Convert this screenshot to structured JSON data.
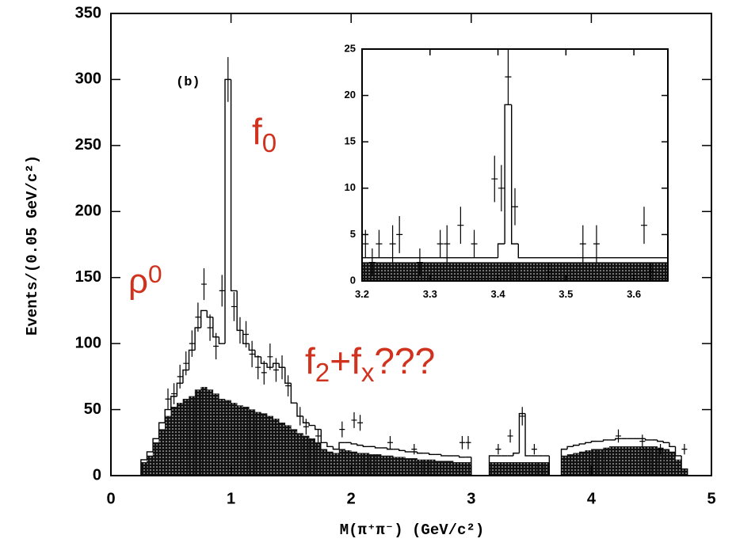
{
  "chart_data": [
    {
      "type": "histogram",
      "xlabel": "M(π⁺π⁻)  (GeV/c²)",
      "ylabel": "Events/(0.05 GeV/c²)",
      "xlim": [
        0,
        5
      ],
      "ylim": [
        0,
        350
      ],
      "xticks": [
        0,
        1,
        2,
        3,
        4,
        5
      ],
      "yticks": [
        0,
        50,
        100,
        150,
        200,
        250,
        300,
        350
      ],
      "bins": [
        0.2,
        0.25,
        0.3,
        0.35,
        0.4,
        0.45,
        0.5,
        0.55,
        0.6,
        0.65,
        0.7,
        0.75,
        0.8,
        0.85,
        0.9,
        0.95,
        1.0,
        1.05,
        1.1,
        1.15,
        1.2,
        1.25,
        1.3,
        1.35,
        1.4,
        1.45,
        1.5,
        1.55,
        1.6,
        1.65,
        1.7,
        1.75,
        1.8,
        1.85,
        1.9,
        1.95,
        2.0,
        2.05,
        2.1,
        2.15,
        2.2,
        2.25,
        2.3,
        2.35,
        2.4,
        2.45,
        2.5,
        2.55,
        2.6,
        2.65,
        2.7,
        2.75,
        2.8,
        2.85,
        2.9,
        2.95,
        3.0,
        3.05,
        3.1,
        3.15,
        3.2,
        3.25,
        3.3,
        3.35,
        3.4,
        3.45,
        3.5,
        3.55,
        3.6,
        3.65,
        3.7,
        3.75,
        3.8,
        3.85,
        3.9,
        3.95,
        4.0,
        4.05,
        4.1,
        4.15,
        4.2,
        4.25,
        4.3,
        4.35,
        4.4,
        4.45,
        4.5,
        4.55,
        4.6,
        4.65,
        4.7,
        4.75,
        4.8
      ],
      "series": [
        {
          "style": "hatched",
          "color": "#111111",
          "values": [
            0,
            10,
            15,
            25,
            35,
            45,
            52,
            55,
            58,
            60,
            65,
            67,
            65,
            62,
            58,
            57,
            55,
            53,
            52,
            50,
            48,
            47,
            45,
            43,
            40,
            38,
            35,
            32,
            30,
            28,
            25,
            20,
            18,
            17,
            20,
            19,
            18,
            17,
            17,
            16,
            16,
            15,
            15,
            14,
            14,
            13,
            13,
            12,
            12,
            12,
            11,
            11,
            11,
            10,
            10,
            10,
            0,
            0,
            0,
            10,
            10,
            10,
            10,
            10,
            10,
            10,
            10,
            10,
            10,
            0,
            0,
            15,
            16,
            17,
            18,
            19,
            20,
            20,
            21,
            22,
            22,
            22,
            22,
            22,
            22,
            22,
            22,
            21,
            20,
            18,
            12,
            5
          ]
        },
        {
          "style": "step",
          "color": "#000000",
          "values": [
            0,
            12,
            18,
            28,
            40,
            50,
            60,
            70,
            80,
            95,
            112,
            125,
            120,
            105,
            100,
            300,
            140,
            110,
            100,
            95,
            90,
            85,
            82,
            85,
            82,
            70,
            55,
            45,
            40,
            38,
            35,
            25,
            22,
            20,
            25,
            25,
            24,
            23,
            22,
            22,
            21,
            21,
            20,
            20,
            19,
            18,
            18,
            17,
            17,
            16,
            16,
            15,
            15,
            15,
            14,
            14,
            0,
            0,
            0,
            15,
            15,
            15,
            15,
            17,
            47,
            15,
            15,
            15,
            15,
            0,
            0,
            20,
            22,
            23,
            24,
            25,
            26,
            26,
            27,
            27,
            28,
            28,
            28,
            28,
            28,
            27,
            27,
            26,
            25,
            22,
            15,
            5
          ]
        }
      ],
      "points": {
        "color": "#000000",
        "x": [
          0.475,
          0.525,
          0.575,
          0.625,
          0.675,
          0.725,
          0.775,
          0.825,
          0.875,
          0.925,
          0.975,
          1.025,
          1.075,
          1.125,
          1.175,
          1.225,
          1.275,
          1.325,
          1.375,
          1.425,
          1.475,
          1.575,
          1.625,
          1.725,
          1.925,
          2.025,
          2.075,
          2.325,
          2.525,
          2.925,
          2.975,
          3.225,
          3.325,
          3.425,
          3.525,
          4.225,
          4.425,
          4.575,
          4.775
        ],
        "y": [
          58,
          62,
          75,
          85,
          100,
          120,
          145,
          112,
          98,
          140,
          300,
          128,
          110,
          107,
          92,
          82,
          78,
          90,
          80,
          82,
          68,
          45,
          37,
          30,
          35,
          42,
          40,
          25,
          20,
          25,
          25,
          20,
          30,
          45,
          20,
          30,
          26,
          20,
          20
        ],
        "err": [
          8,
          8,
          9,
          9,
          10,
          11,
          12,
          10,
          10,
          12,
          17,
          11,
          10,
          10,
          10,
          9,
          9,
          10,
          9,
          9,
          8,
          7,
          6,
          5,
          6,
          6,
          6,
          5,
          4,
          5,
          5,
          4,
          5,
          7,
          4,
          5,
          5,
          4,
          4
        ]
      },
      "annotations": [
        {
          "segments": [
            {
              "t": "(b)"
            }
          ],
          "color": "#000000"
        },
        {
          "segments": [
            {
              "t": "f"
            },
            {
              "t": "0",
              "sub": true
            }
          ],
          "color": "#d0321e"
        },
        {
          "segments": [
            {
              "t": "ρ"
            },
            {
              "t": "0",
              "sup": true
            }
          ],
          "color": "#d0321e"
        },
        {
          "segments": [
            {
              "t": "f"
            },
            {
              "t": "2",
              "sub": true
            },
            {
              "t": "+f"
            },
            {
              "t": "x",
              "sub": true
            },
            {
              "t": "???"
            }
          ],
          "color": "#d0321e"
        }
      ]
    },
    {
      "type": "histogram",
      "xlim": [
        3.2,
        3.65
      ],
      "ylim": [
        0,
        25
      ],
      "xticks": [
        3.2,
        3.3,
        3.4,
        3.5,
        3.6
      ],
      "yticks": [
        0,
        5,
        10,
        15,
        20,
        25
      ],
      "bins": [
        3.2,
        3.4,
        3.41,
        3.42,
        3.43,
        3.65
      ],
      "series": [
        {
          "style": "hatched",
          "color": "#111111",
          "values": [
            2,
            2,
            2,
            2,
            2
          ]
        },
        {
          "style": "step",
          "color": "#000000",
          "values": [
            2.5,
            4,
            19,
            4,
            2.5
          ]
        }
      ],
      "points": {
        "color": "#000000",
        "x": [
          3.205,
          3.215,
          3.225,
          3.245,
          3.255,
          3.285,
          3.315,
          3.325,
          3.345,
          3.365,
          3.395,
          3.405,
          3.415,
          3.425,
          3.475,
          3.525,
          3.545,
          3.615,
          3.625
        ],
        "y": [
          4,
          2,
          4,
          4,
          5,
          2,
          4,
          4,
          6,
          4,
          11,
          10,
          22,
          8,
          1,
          4,
          4,
          6,
          1
        ],
        "err": [
          1.5,
          1.5,
          1.5,
          2,
          2,
          1.5,
          1.5,
          2,
          2,
          1.5,
          2.5,
          2.5,
          3,
          2,
          1,
          2,
          2,
          2,
          1
        ]
      }
    }
  ]
}
